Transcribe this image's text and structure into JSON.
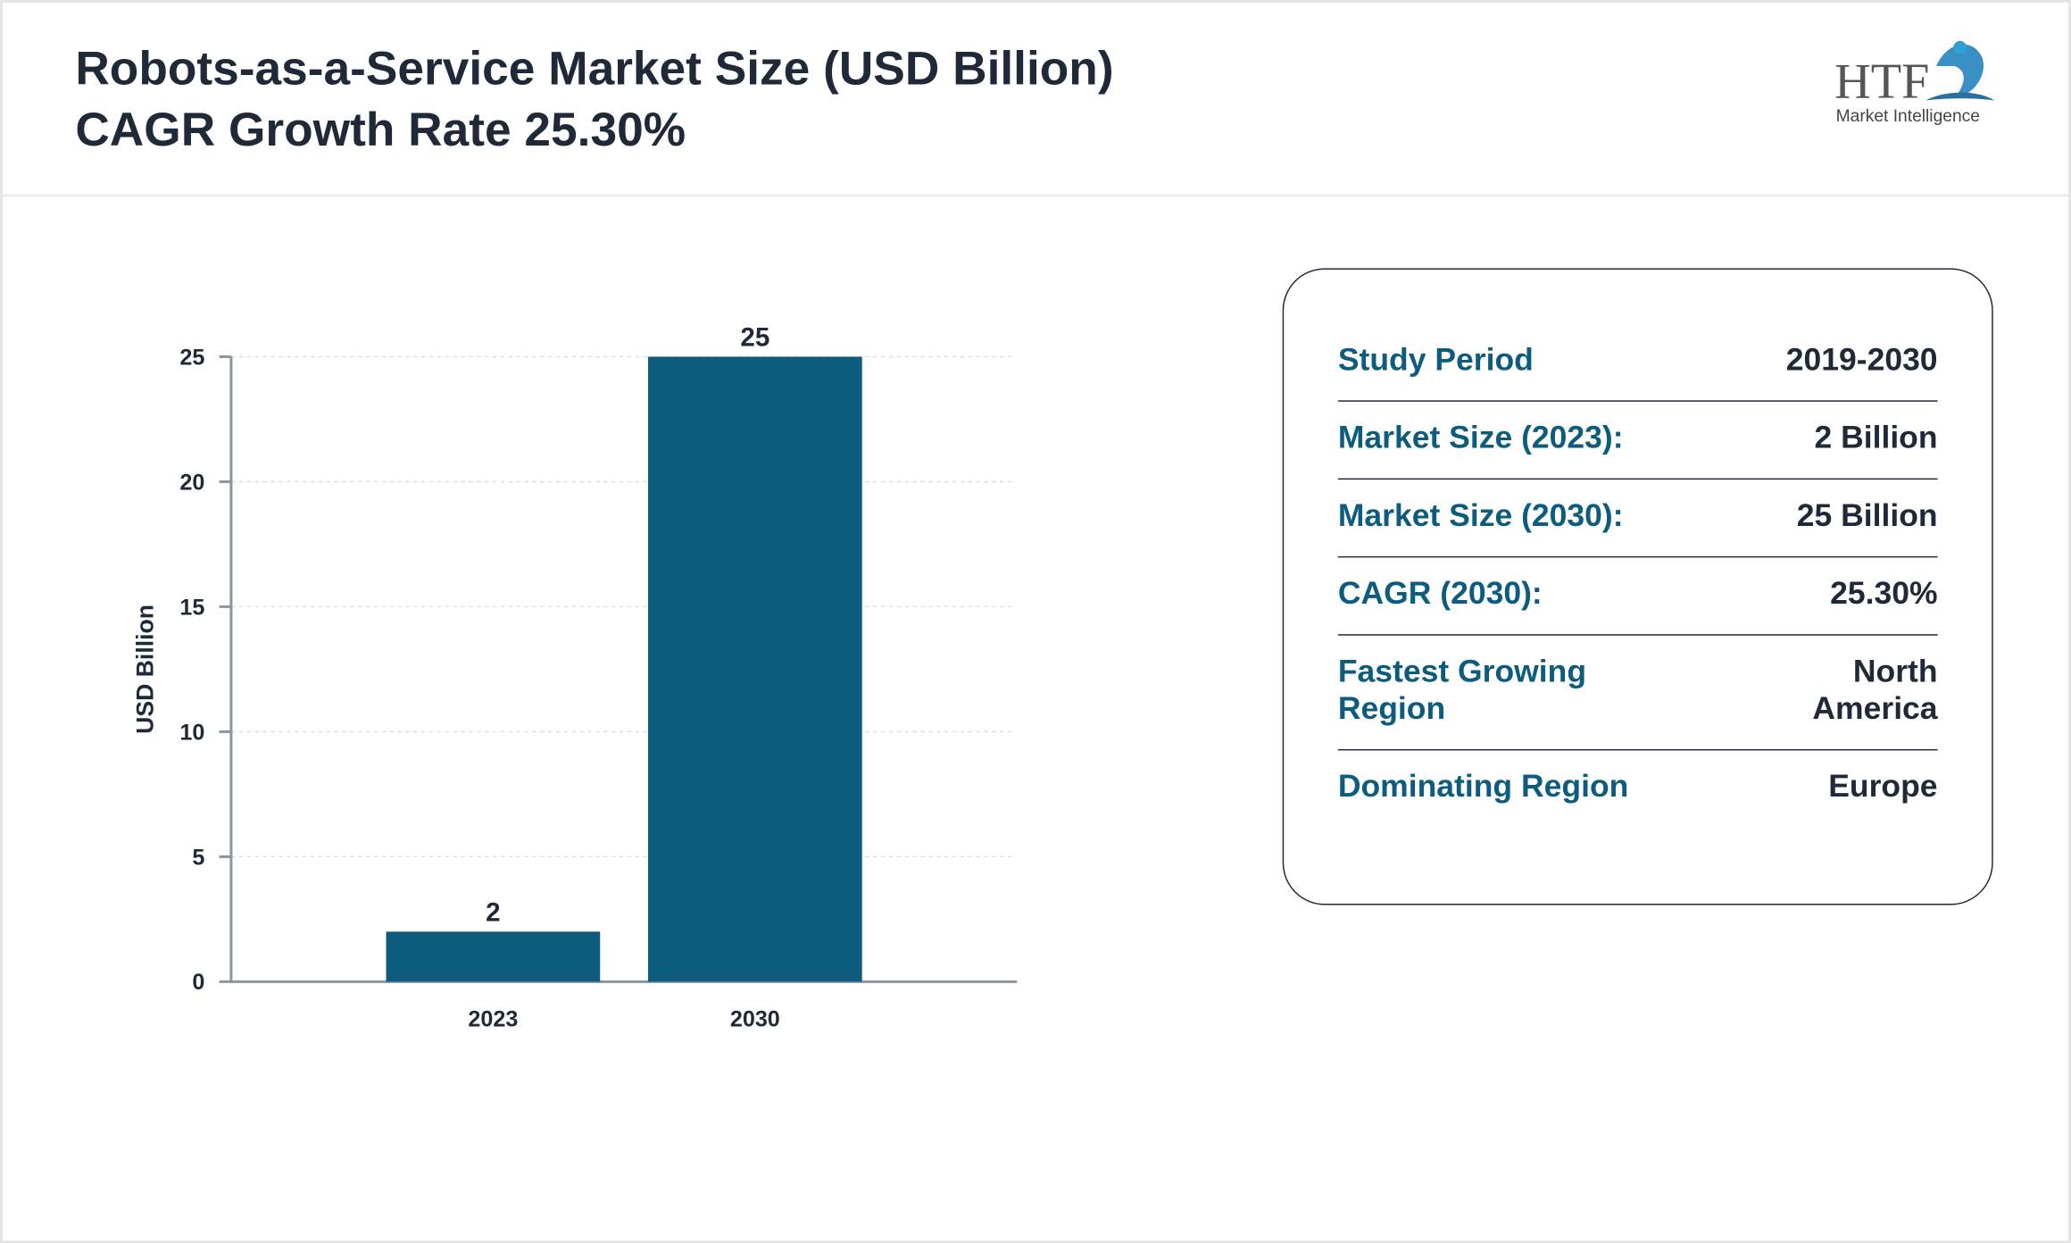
{
  "chart_data": {
    "type": "bar",
    "title": "Robots-as-a-Service Market Size (USD Billion)",
    "subtitle": "CAGR Growth Rate 25.30%",
    "y_label": "USD Billion",
    "categories": [
      "2023",
      "2030"
    ],
    "values": [
      2,
      25
    ],
    "color": "#0d5c7d",
    "ylim": [
      0,
      25
    ],
    "yticks": [
      0,
      5,
      10,
      15,
      20,
      25
    ],
    "grid": true
  },
  "logo": {
    "mark": "HTF",
    "tagline": "Market Intelligence"
  },
  "info_table": {
    "rows": [
      [
        "Study Period",
        "2019-2030"
      ],
      [
        "Market Size (2023):",
        "2 Billion"
      ],
      [
        "Market Size (2030):",
        "25 Billion"
      ],
      [
        "CAGR (2030):",
        "25.30%"
      ],
      [
        "Fastest Growing Region",
        "North America"
      ],
      [
        "Dominating Region",
        "Europe"
      ]
    ]
  }
}
